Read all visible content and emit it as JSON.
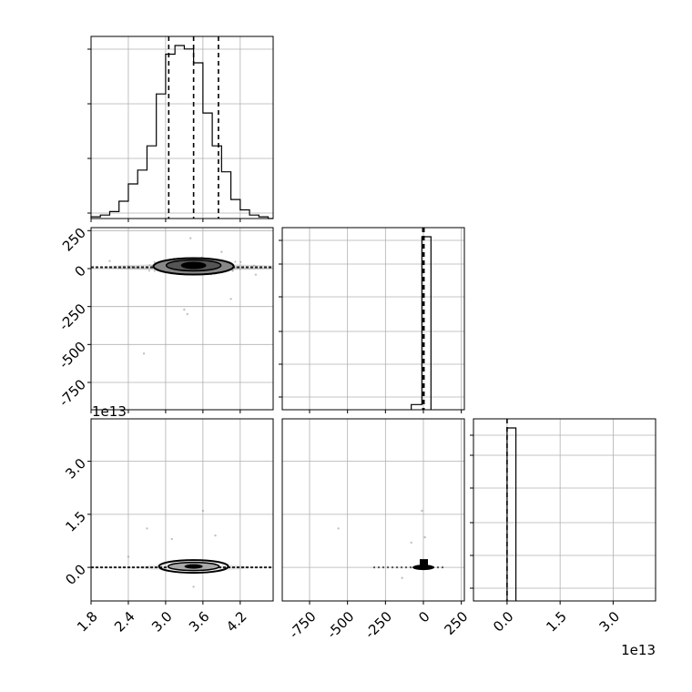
{
  "chart_data": [
    {
      "type": "histogram",
      "panel": "marginal-param-1",
      "x_ticks": [
        "1.8",
        "2.4",
        "3.0",
        "3.6",
        "4.2"
      ],
      "x_tick_values": [
        1.8,
        2.4,
        3.0,
        3.6,
        4.2
      ],
      "xlim": [
        1.8,
        4.73
      ],
      "bin_edges": [
        1.8,
        1.95,
        2.1,
        2.25,
        2.4,
        2.55,
        2.7,
        2.85,
        3.0,
        3.15,
        3.3,
        3.45,
        3.6,
        3.75,
        3.9,
        4.05,
        4.2,
        4.35,
        4.5,
        4.65,
        4.73
      ],
      "counts": [
        0.01,
        0.02,
        0.04,
        0.1,
        0.2,
        0.28,
        0.42,
        0.72,
        0.95,
        1.0,
        0.98,
        0.9,
        0.61,
        0.42,
        0.27,
        0.11,
        0.05,
        0.02,
        0.01,
        0.0
      ],
      "quantile_lines": [
        3.05,
        3.45,
        3.85
      ],
      "grid": true
    },
    {
      "type": "histogram",
      "panel": "marginal-param-2",
      "x_ticks": [
        "-750",
        "-500",
        "-250",
        "0",
        "250"
      ],
      "x_tick_values": [
        -750,
        -500,
        -250,
        0,
        250
      ],
      "xlim": [
        -930,
        270
      ],
      "bin_edges": [
        -80,
        -10,
        50
      ],
      "counts": [
        0.03,
        1.0
      ],
      "quantile_lines": [
        -4,
        0,
        4
      ],
      "grid": true
    },
    {
      "type": "histogram",
      "panel": "marginal-param-3",
      "x_ticks": [
        "0.0",
        "1.5",
        "3.0"
      ],
      "x_tick_values": [
        0.0,
        1.5,
        3.0
      ],
      "x_offset_text": "1e13",
      "xlim": [
        -0.95,
        4.2
      ],
      "bin_edges": [
        0.0,
        0.25
      ],
      "counts": [
        1.0
      ],
      "quantile_lines": [
        0.0
      ],
      "grid": true
    },
    {
      "type": "scatter",
      "panel": "joint-param-1-vs-param-2",
      "x_ticks": [
        "1.8",
        "2.4",
        "3.0",
        "3.6",
        "4.2"
      ],
      "x_tick_values": [
        1.8,
        2.4,
        3.0,
        3.6,
        4.2
      ],
      "y_ticks": [
        "250",
        "0",
        "-250",
        "-500",
        "-750"
      ],
      "y_tick_values": [
        250,
        0,
        -250,
        -500,
        -750
      ],
      "xlim": [
        1.8,
        4.73
      ],
      "ylim": [
        -930,
        270
      ],
      "center": [
        3.45,
        15
      ],
      "outliers": [
        [
          2.65,
          -560
        ],
        [
          3.3,
          -270
        ],
        [
          3.35,
          -300
        ],
        [
          3.4,
          200
        ],
        [
          4.05,
          -200
        ],
        [
          2.1,
          50
        ],
        [
          4.45,
          -40
        ],
        [
          3.9,
          110
        ]
      ],
      "grid": true
    },
    {
      "type": "scatter",
      "panel": "joint-param-1-vs-param-3",
      "x_ticks": [
        "1.8",
        "2.4",
        "3.0",
        "3.6",
        "4.2"
      ],
      "x_tick_values": [
        1.8,
        2.4,
        3.0,
        3.6,
        4.2
      ],
      "y_ticks": [
        "3.0",
        "1.5",
        "0.0"
      ],
      "y_tick_values": [
        3.0,
        1.5,
        0.0
      ],
      "y_offset_text": "1e13",
      "xlim": [
        1.8,
        4.73
      ],
      "ylim": [
        -0.95,
        4.2
      ],
      "center": [
        3.45,
        0.0
      ],
      "outliers": [
        [
          2.7,
          1.1
        ],
        [
          3.6,
          1.6
        ],
        [
          3.1,
          0.8
        ],
        [
          3.8,
          0.9
        ],
        [
          2.4,
          0.3
        ],
        [
          3.45,
          -0.55
        ]
      ],
      "grid": true
    },
    {
      "type": "scatter",
      "panel": "joint-param-2-vs-param-3",
      "x_ticks": [
        "-750",
        "-500",
        "-250",
        "0",
        "250"
      ],
      "x_tick_values": [
        -750,
        -500,
        -250,
        0,
        250
      ],
      "x_offset_text": "1e13",
      "xlim": [
        -930,
        270
      ],
      "ylim": [
        -0.95,
        4.2
      ],
      "center": [
        0,
        0.0
      ],
      "outliers": [
        [
          -560,
          1.1
        ],
        [
          -10,
          1.6
        ],
        [
          -80,
          0.7
        ],
        [
          10,
          0.85
        ],
        [
          -140,
          -0.3
        ]
      ],
      "grid": true
    }
  ]
}
